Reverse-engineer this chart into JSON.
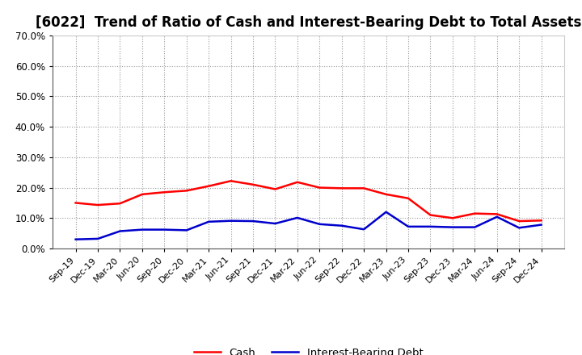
{
  "title": "[6022]  Trend of Ratio of Cash and Interest-Bearing Debt to Total Assets",
  "x_labels": [
    "Sep-19",
    "Dec-19",
    "Mar-20",
    "Jun-20",
    "Sep-20",
    "Dec-20",
    "Mar-21",
    "Jun-21",
    "Sep-21",
    "Dec-21",
    "Mar-22",
    "Jun-22",
    "Sep-22",
    "Dec-22",
    "Mar-23",
    "Jun-23",
    "Sep-23",
    "Dec-23",
    "Mar-24",
    "Jun-24",
    "Sep-24",
    "Dec-24"
  ],
  "cash": [
    0.15,
    0.143,
    0.148,
    0.178,
    0.185,
    0.19,
    0.205,
    0.222,
    0.21,
    0.195,
    0.218,
    0.2,
    0.198,
    0.198,
    0.178,
    0.165,
    0.11,
    0.1,
    0.115,
    0.113,
    0.09,
    0.092
  ],
  "ibd": [
    0.03,
    0.032,
    0.057,
    0.062,
    0.062,
    0.06,
    0.088,
    0.091,
    0.09,
    0.082,
    0.101,
    0.08,
    0.075,
    0.063,
    0.12,
    0.072,
    0.072,
    0.07,
    0.07,
    0.104,
    0.068,
    0.078
  ],
  "cash_color": "#ff0000",
  "ibd_color": "#0000cc",
  "ylim": [
    0.0,
    0.7
  ],
  "yticks": [
    0.0,
    0.1,
    0.2,
    0.3,
    0.4,
    0.5,
    0.6,
    0.7
  ],
  "background_color": "#ffffff",
  "grid_color": "#999999",
  "title_fontsize": 12,
  "legend_cash": "Cash",
  "legend_ibd": "Interest-Bearing Debt",
  "line_width": 1.8
}
